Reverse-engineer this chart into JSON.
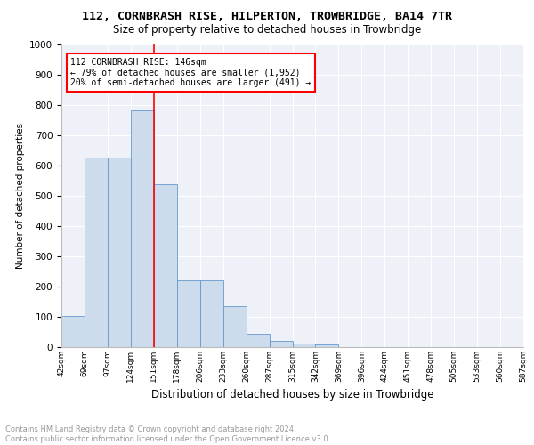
{
  "title": "112, CORNBRASH RISE, HILPERTON, TROWBRIDGE, BA14 7TR",
  "subtitle": "Size of property relative to detached houses in Trowbridge",
  "xlabel": "Distribution of detached houses by size in Trowbridge",
  "ylabel": "Number of detached properties",
  "bar_values": [
    103,
    625,
    625,
    783,
    538,
    222,
    222,
    135,
    45,
    20,
    13,
    10,
    0,
    0,
    0,
    0,
    0,
    0,
    0,
    0
  ],
  "bar_labels": [
    "42sqm",
    "69sqm",
    "97sqm",
    "124sqm",
    "151sqm",
    "178sqm",
    "206sqm",
    "233sqm",
    "260sqm",
    "287sqm",
    "315sqm",
    "342sqm",
    "369sqm",
    "396sqm",
    "424sqm",
    "451sqm",
    "478sqm",
    "505sqm",
    "533sqm",
    "560sqm",
    "587sqm"
  ],
  "bar_color": "#ccdcec",
  "bar_edge_color": "#6699cc",
  "vline_x": 4.5,
  "vline_color": "red",
  "annotation_text": "112 CORNBRASH RISE: 146sqm\n← 79% of detached houses are smaller (1,952)\n20% of semi-detached houses are larger (491) →",
  "annotation_box_color": "white",
  "annotation_edge_color": "red",
  "ylim": [
    0,
    1000
  ],
  "yticks": [
    0,
    100,
    200,
    300,
    400,
    500,
    600,
    700,
    800,
    900,
    1000
  ],
  "footer_text": "Contains HM Land Registry data © Crown copyright and database right 2024.\nContains public sector information licensed under the Open Government Licence v3.0.",
  "bg_color": "#eef2f8",
  "title_fontsize": 9.5,
  "subtitle_fontsize": 8.5
}
